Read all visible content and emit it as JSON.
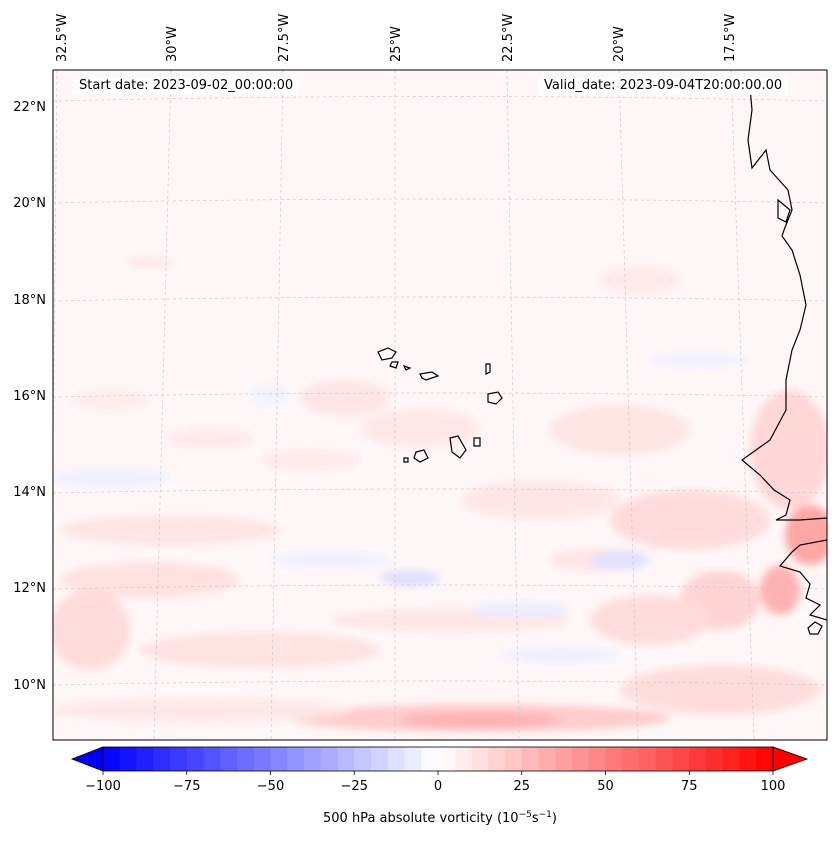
{
  "map": {
    "projection_region": "Cape Verde / West African coast",
    "lon_labels": [
      "32.5°W",
      "30°W",
      "27.5°W",
      "25°W",
      "22.5°W",
      "20°W",
      "17.5°W"
    ],
    "lat_labels": [
      "22°N",
      "20°N",
      "18°N",
      "16°N",
      "14°N",
      "12°N",
      "10°N"
    ],
    "start_date": "Start date: 2023-09-02_00:00:00",
    "valid_date": "Valid_date: 2023-09-04T20:00:00.00",
    "field": "500 hPa absolute vorticity"
  },
  "colorbar": {
    "label": "500 hPa absolute vorticity (10",
    "label_exp1": "−5",
    "label_mid": "s",
    "label_exp2": "−1",
    "label_end": ")",
    "ticks": [
      "−100",
      "−75",
      "−50",
      "−25",
      "0",
      "25",
      "50",
      "75",
      "100"
    ],
    "min": -100,
    "max": 100,
    "colors": {
      "negative": "#0000ff",
      "zero": "#ffffff",
      "positive": "#ff0000"
    }
  }
}
